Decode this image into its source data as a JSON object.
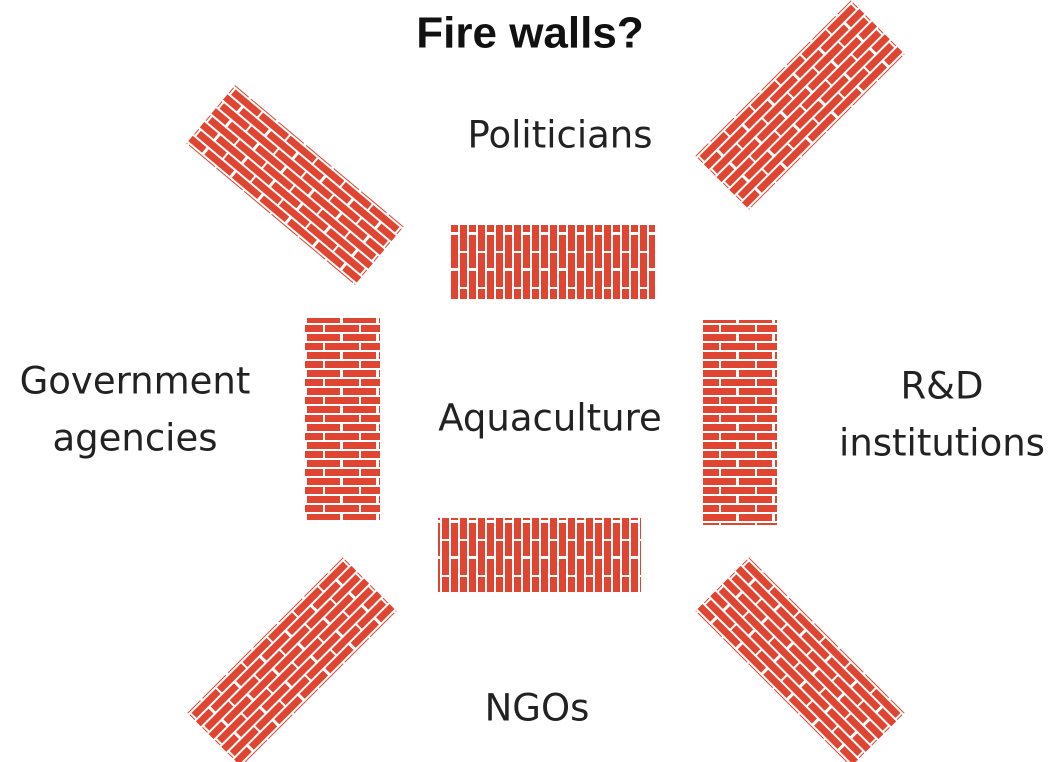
{
  "title": "Fire walls?",
  "center": "Aquaculture",
  "top": "Politicians",
  "left": [
    "Government",
    "agencies"
  ],
  "right": [
    "R&D",
    "institutions"
  ],
  "bottom": "NGOs"
}
